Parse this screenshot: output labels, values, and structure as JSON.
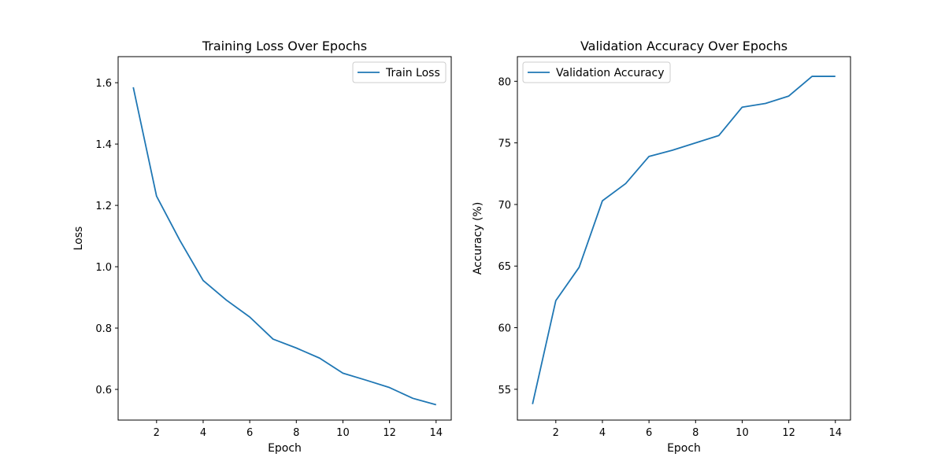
{
  "chart_data": [
    {
      "type": "line",
      "title": "Training Loss Over Epochs",
      "xlabel": "Epoch",
      "ylabel": "Loss",
      "xlim": [
        0.35,
        14.65
      ],
      "ylim": [
        0.5,
        1.685
      ],
      "xticks": [
        2,
        4,
        6,
        8,
        10,
        12,
        14
      ],
      "yticks": [
        0.6,
        0.8,
        1.0,
        1.2,
        1.4,
        1.6
      ],
      "ytick_labels": [
        "0.6",
        "0.8",
        "1.0",
        "1.2",
        "1.4",
        "1.6"
      ],
      "grid": false,
      "legend": "top-right",
      "x": [
        1,
        2,
        3,
        4,
        5,
        6,
        7,
        8,
        9,
        10,
        11,
        12,
        13,
        14
      ],
      "series": [
        {
          "name": "Train Loss",
          "color": "#1f77b4",
          "values": [
            1.585,
            1.23,
            1.086,
            0.955,
            0.891,
            0.836,
            0.764,
            0.735,
            0.702,
            0.653,
            0.63,
            0.606,
            0.571,
            0.55
          ]
        }
      ]
    },
    {
      "type": "line",
      "title": "Validation Accuracy Over Epochs",
      "xlabel": "Epoch",
      "ylabel": "Accuracy (%)",
      "xlim": [
        0.35,
        14.65
      ],
      "ylim": [
        52.5,
        82.0
      ],
      "xticks": [
        2,
        4,
        6,
        8,
        10,
        12,
        14
      ],
      "yticks": [
        55,
        60,
        65,
        70,
        75,
        80
      ],
      "ytick_labels": [
        "55",
        "60",
        "65",
        "70",
        "75",
        "80"
      ],
      "grid": false,
      "legend": "top-left",
      "x": [
        1,
        2,
        3,
        4,
        5,
        6,
        7,
        8,
        9,
        10,
        11,
        12,
        13,
        14
      ],
      "series": [
        {
          "name": "Validation Accuracy",
          "color": "#1f77b4",
          "values": [
            53.8,
            62.2,
            64.9,
            70.3,
            71.7,
            73.9,
            74.4,
            75.0,
            75.6,
            77.9,
            78.2,
            78.8,
            80.4,
            80.4
          ]
        }
      ]
    }
  ]
}
